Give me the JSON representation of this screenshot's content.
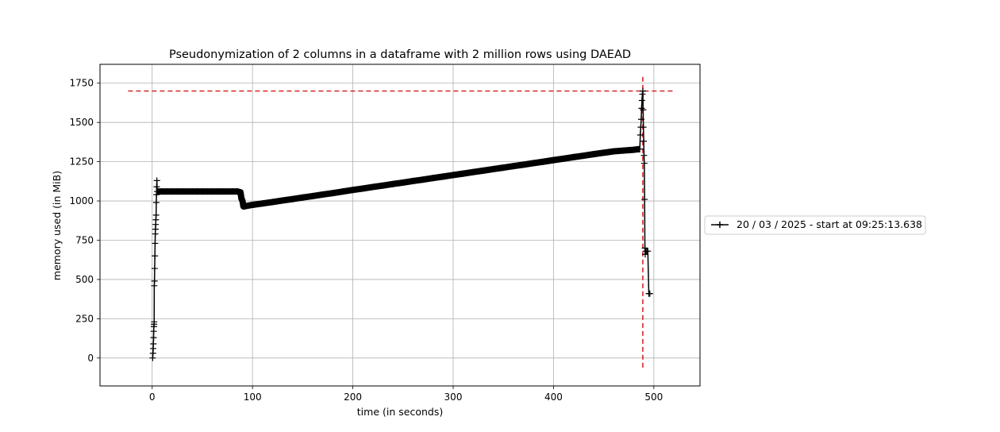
{
  "chart_data": {
    "type": "line",
    "title": "Pseudonymization of 2 columns in a dataframe with 2 million rows using DAEAD",
    "xlabel": "time (in seconds)",
    "ylabel": "memory used (in MiB)",
    "xlim": [
      -52,
      546
    ],
    "ylim": [
      -178,
      1870
    ],
    "xticks": [
      0,
      100,
      200,
      300,
      400,
      500
    ],
    "yticks": [
      0,
      250,
      500,
      750,
      1000,
      1250,
      1500,
      1750
    ],
    "grid": true,
    "legend_position": "right, outside the plot",
    "series": [
      {
        "name": "20 / 03 / 2025 - start at 09:25:13.638",
        "color": "#000000",
        "marker": "+",
        "points": [
          [
            0.5,
            0
          ],
          [
            0.8,
            30
          ],
          [
            1.0,
            60
          ],
          [
            1.2,
            90
          ],
          [
            1.4,
            130
          ],
          [
            1.5,
            170
          ],
          [
            1.7,
            200
          ],
          [
            1.9,
            215
          ],
          [
            2.0,
            230
          ],
          [
            2.1,
            460
          ],
          [
            2.3,
            490
          ],
          [
            2.5,
            570
          ],
          [
            2.7,
            650
          ],
          [
            2.9,
            730
          ],
          [
            3.1,
            790
          ],
          [
            3.3,
            820
          ],
          [
            3.5,
            850
          ],
          [
            3.7,
            880
          ],
          [
            3.9,
            910
          ],
          [
            4.1,
            990
          ],
          [
            4.3,
            1040
          ],
          [
            4.5,
            1090
          ],
          [
            4.7,
            1130
          ],
          [
            5,
            1060
          ],
          [
            10,
            1060
          ],
          [
            15,
            1060
          ],
          [
            20,
            1060
          ],
          [
            25,
            1060
          ],
          [
            30,
            1060
          ],
          [
            35,
            1060
          ],
          [
            40,
            1060
          ],
          [
            45,
            1060
          ],
          [
            50,
            1060
          ],
          [
            55,
            1060
          ],
          [
            60,
            1060
          ],
          [
            65,
            1060
          ],
          [
            70,
            1060
          ],
          [
            75,
            1060
          ],
          [
            80,
            1060
          ],
          [
            85,
            1060
          ],
          [
            88,
            1055
          ],
          [
            89,
            1015
          ],
          [
            90,
            1000
          ],
          [
            91,
            965
          ],
          [
            92,
            966
          ],
          [
            100,
            975
          ],
          [
            110,
            984
          ],
          [
            120,
            993
          ],
          [
            130,
            1003
          ],
          [
            140,
            1012
          ],
          [
            150,
            1022
          ],
          [
            160,
            1031
          ],
          [
            170,
            1041
          ],
          [
            180,
            1050
          ],
          [
            190,
            1060
          ],
          [
            200,
            1070
          ],
          [
            210,
            1079
          ],
          [
            220,
            1089
          ],
          [
            230,
            1098
          ],
          [
            240,
            1108
          ],
          [
            250,
            1117
          ],
          [
            260,
            1127
          ],
          [
            270,
            1136
          ],
          [
            280,
            1146
          ],
          [
            290,
            1155
          ],
          [
            300,
            1165
          ],
          [
            310,
            1174
          ],
          [
            320,
            1184
          ],
          [
            330,
            1193
          ],
          [
            340,
            1203
          ],
          [
            350,
            1212
          ],
          [
            360,
            1222
          ],
          [
            370,
            1231
          ],
          [
            380,
            1241
          ],
          [
            390,
            1250
          ],
          [
            400,
            1260
          ],
          [
            410,
            1269
          ],
          [
            420,
            1279
          ],
          [
            430,
            1288
          ],
          [
            440,
            1298
          ],
          [
            450,
            1307
          ],
          [
            460,
            1316
          ],
          [
            470,
            1321
          ],
          [
            480,
            1326
          ],
          [
            486,
            1330
          ],
          [
            486.5,
            1420
          ],
          [
            487,
            1470
          ],
          [
            487.4,
            1520
          ],
          [
            487.8,
            1590
          ],
          [
            488.2,
            1640
          ],
          [
            488.6,
            1680
          ],
          [
            489,
            1700
          ],
          [
            489.3,
            1580
          ],
          [
            489.6,
            1470
          ],
          [
            489.9,
            1380
          ],
          [
            490.2,
            1290
          ],
          [
            490.5,
            1240
          ],
          [
            490.8,
            1010
          ],
          [
            491.1,
            700
          ],
          [
            491.4,
            660
          ],
          [
            492,
            680
          ],
          [
            493,
            680
          ],
          [
            494,
            680
          ],
          [
            495,
            410
          ],
          [
            496,
            410
          ]
        ]
      }
    ],
    "reference_lines": [
      {
        "orientation": "horizontal",
        "value": 1700,
        "from": -24,
        "to": 519,
        "color": "#d62728",
        "style": "dashed"
      },
      {
        "orientation": "vertical",
        "value": 489,
        "from": -80,
        "to": 1790,
        "color": "#d62728",
        "style": "dashed"
      }
    ]
  }
}
